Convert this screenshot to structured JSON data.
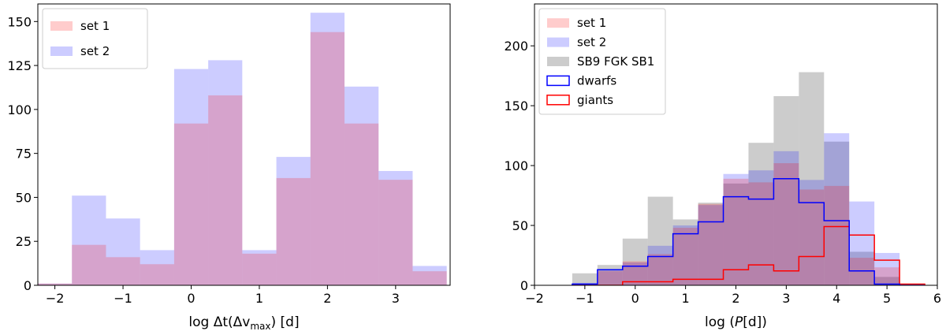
{
  "chart_data": [
    {
      "type": "bar",
      "subtype": "overlaid-histogram",
      "title": "",
      "xlabel": "log Δt(Δv_max) [d]",
      "ylabel": "",
      "xlim": [
        -2.25,
        3.8
      ],
      "ylim": [
        0,
        160
      ],
      "xticks": [
        -2,
        -1,
        0,
        1,
        2,
        3
      ],
      "xtick_labels": [
        "−2",
        "−1",
        "0",
        "1",
        "2",
        "3"
      ],
      "yticks": [
        0,
        25,
        50,
        75,
        100,
        125,
        150
      ],
      "ytick_labels": [
        "0",
        "25",
        "50",
        "75",
        "100",
        "125",
        "150"
      ],
      "legend_position": "top-left",
      "bin_edges": [
        -2.25,
        -1.75,
        -1.25,
        -0.75,
        -0.25,
        0.25,
        0.75,
        1.25,
        1.75,
        2.25,
        2.75,
        3.25,
        3.75
      ],
      "series": [
        {
          "name": "set 2",
          "style": "filled",
          "color": "#0000ff",
          "opacity": 0.2,
          "values": [
            1,
            51,
            38,
            20,
            123,
            128,
            20,
            73,
            155,
            113,
            65,
            11
          ]
        },
        {
          "name": "set 1",
          "style": "filled",
          "color": "#ff0000",
          "opacity": 0.2,
          "values": [
            1,
            23,
            16,
            12,
            92,
            108,
            18,
            61,
            144,
            92,
            60,
            8
          ]
        }
      ]
    },
    {
      "type": "bar",
      "subtype": "overlaid-histogram",
      "title": "",
      "xlabel": "log (P[d])",
      "ylabel": "",
      "xlim": [
        -2,
        6
      ],
      "ylim": [
        0,
        235
      ],
      "xticks": [
        -2,
        -1,
        0,
        1,
        2,
        3,
        4,
        5,
        6
      ],
      "xtick_labels": [
        "−2",
        "−1",
        "0",
        "1",
        "2",
        "3",
        "4",
        "5",
        "6"
      ],
      "yticks": [
        0,
        50,
        100,
        150,
        200
      ],
      "ytick_labels": [
        "0",
        "50",
        "100",
        "150",
        "200"
      ],
      "legend_position": "top-left",
      "bin_edges": [
        -1.25,
        -0.75,
        -0.25,
        0.25,
        0.75,
        1.25,
        1.75,
        2.25,
        2.75,
        3.25,
        3.75,
        4.25,
        4.75,
        5.25,
        5.75
      ],
      "series": [
        {
          "name": "SB9 FGK SB1",
          "style": "filled",
          "color": "#808080",
          "opacity": 0.4,
          "values": [
            10,
            17,
            39,
            74,
            55,
            69,
            85,
            119,
            158,
            178,
            120,
            28,
            7,
            0
          ]
        },
        {
          "name": "set 2",
          "style": "filled",
          "color": "#0000ff",
          "opacity": 0.2,
          "values": [
            2,
            13,
            19,
            33,
            50,
            67,
            93,
            96,
            112,
            88,
            127,
            70,
            27,
            1
          ]
        },
        {
          "name": "set 1",
          "style": "filled",
          "color": "#ff0000",
          "opacity": 0.2,
          "values": [
            1,
            12,
            20,
            26,
            48,
            68,
            89,
            86,
            102,
            80,
            83,
            23,
            15,
            1
          ]
        },
        {
          "name": "giants",
          "style": "step",
          "color": "#ff0000",
          "values": [
            0,
            0,
            3,
            3,
            5,
            5,
            13,
            17,
            12,
            24,
            49,
            42,
            21,
            1
          ]
        },
        {
          "name": "dwarfs",
          "style": "step",
          "color": "#0000ff",
          "values": [
            1,
            13,
            16,
            24,
            43,
            53,
            74,
            72,
            89,
            69,
            54,
            12,
            1,
            0
          ]
        }
      ]
    }
  ]
}
